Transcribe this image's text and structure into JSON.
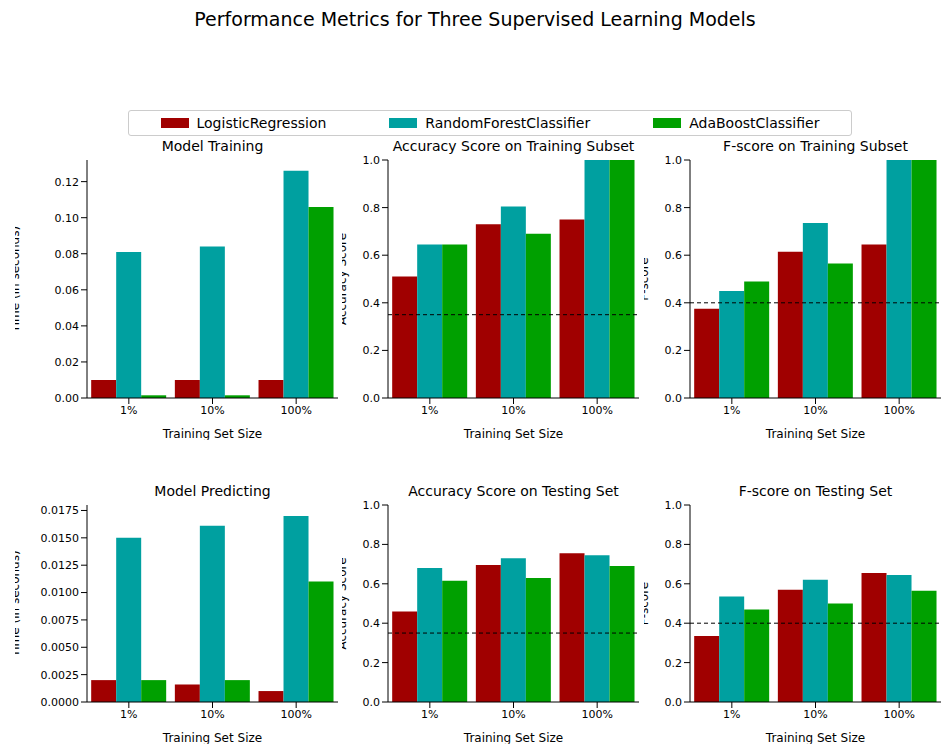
{
  "title": "Performance Metrics for Three Supervised Learning Models",
  "chart_data": [
    {
      "type": "bar",
      "title": "Model Training",
      "xlabel": "Training Set Size",
      "ylabel": "Time (in seconds)",
      "categories": [
        "1%",
        "10%",
        "100%"
      ],
      "series": [
        {
          "name": "LogisticRegression",
          "color": "#a00000",
          "values": [
            0.01,
            0.01,
            0.01
          ]
        },
        {
          "name": "RandomForestClassifier",
          "color": "#00a0a0",
          "values": [
            0.081,
            0.084,
            0.126
          ]
        },
        {
          "name": "AdaBoostClassifier",
          "color": "#00a000",
          "values": [
            0.0015,
            0.0015,
            0.106
          ]
        }
      ],
      "ylim": [
        0,
        0.132
      ],
      "yticks": [
        {
          "value": 0,
          "label": "0.00"
        },
        {
          "value": 0.02,
          "label": "0.02"
        },
        {
          "value": 0.04,
          "label": "0.04"
        },
        {
          "value": 0.06,
          "label": "0.06"
        },
        {
          "value": 0.08,
          "label": "0.08"
        },
        {
          "value": 0.1,
          "label": "0.10"
        },
        {
          "value": 0.12,
          "label": "0.12"
        }
      ]
    },
    {
      "type": "bar",
      "title": "Accuracy Score on Training Subset",
      "xlabel": "Training Set Size",
      "ylabel": "Accuracy Score",
      "categories": [
        "1%",
        "10%",
        "100%"
      ],
      "series": [
        {
          "name": "LogisticRegression",
          "color": "#a00000",
          "values": [
            0.51,
            0.73,
            0.75
          ]
        },
        {
          "name": "RandomForestClassifier",
          "color": "#00a0a0",
          "values": [
            0.645,
            0.805,
            1.0
          ]
        },
        {
          "name": "AdaBoostClassifier",
          "color": "#00a000",
          "values": [
            0.645,
            0.69,
            1.0
          ]
        }
      ],
      "ylim": [
        0,
        1
      ],
      "yticks": [
        {
          "value": 0,
          "label": "0.0"
        },
        0.2,
        0.4,
        0.6,
        0.8,
        {
          "value": 1,
          "label": "1.0"
        }
      ],
      "hline": 0.35
    },
    {
      "type": "bar",
      "title": "F-score on Training Subset",
      "xlabel": "Training Set Size",
      "ylabel": "F-score",
      "categories": [
        "1%",
        "10%",
        "100%"
      ],
      "series": [
        {
          "name": "LogisticRegression",
          "color": "#a00000",
          "values": [
            0.375,
            0.615,
            0.645
          ]
        },
        {
          "name": "RandomForestClassifier",
          "color": "#00a0a0",
          "values": [
            0.45,
            0.735,
            1.0
          ]
        },
        {
          "name": "AdaBoostClassifier",
          "color": "#00a000",
          "values": [
            0.49,
            0.565,
            1.0
          ]
        }
      ],
      "ylim": [
        0,
        1
      ],
      "yticks": [
        {
          "value": 0,
          "label": "0.0"
        },
        0.2,
        0.4,
        0.6,
        0.8,
        {
          "value": 1,
          "label": "1.0"
        }
      ],
      "hline": 0.4
    },
    {
      "type": "bar",
      "title": "Model Predicting",
      "xlabel": "Training Set Size",
      "ylabel": "Time (in seconds)",
      "categories": [
        "1%",
        "10%",
        "100%"
      ],
      "series": [
        {
          "name": "LogisticRegression",
          "color": "#a00000",
          "values": [
            0.002,
            0.0016,
            0.001
          ]
        },
        {
          "name": "RandomForestClassifier",
          "color": "#00a0a0",
          "values": [
            0.015,
            0.0161,
            0.017
          ]
        },
        {
          "name": "AdaBoostClassifier",
          "color": "#00a000",
          "values": [
            0.002,
            0.002,
            0.011
          ]
        }
      ],
      "ylim": [
        0,
        0.018
      ],
      "yticks": [
        {
          "value": 0,
          "label": "0.0000"
        },
        0.0025,
        {
          "value": 0.005,
          "label": "0.0050"
        },
        0.0075,
        {
          "value": 0.01,
          "label": "0.0100"
        },
        0.0125,
        {
          "value": 0.015,
          "label": "0.0150"
        },
        0.0175
      ]
    },
    {
      "type": "bar",
      "title": "Accuracy Score on Testing Set",
      "xlabel": "Training Set Size",
      "ylabel": "Accuracy Score",
      "categories": [
        "1%",
        "10%",
        "100%"
      ],
      "series": [
        {
          "name": "LogisticRegression",
          "color": "#a00000",
          "values": [
            0.46,
            0.695,
            0.755
          ]
        },
        {
          "name": "RandomForestClassifier",
          "color": "#00a0a0",
          "values": [
            0.68,
            0.73,
            0.745
          ]
        },
        {
          "name": "AdaBoostClassifier",
          "color": "#00a000",
          "values": [
            0.615,
            0.63,
            0.69
          ]
        }
      ],
      "ylim": [
        0,
        1
      ],
      "yticks": [
        {
          "value": 0,
          "label": "0.0"
        },
        0.2,
        0.4,
        0.6,
        0.8,
        {
          "value": 1,
          "label": "1.0"
        }
      ],
      "hline": 0.35
    },
    {
      "type": "bar",
      "title": "F-score on Testing Set",
      "xlabel": "Training Set Size",
      "ylabel": "F-score",
      "categories": [
        "1%",
        "10%",
        "100%"
      ],
      "series": [
        {
          "name": "LogisticRegression",
          "color": "#a00000",
          "values": [
            0.335,
            0.57,
            0.655
          ]
        },
        {
          "name": "RandomForestClassifier",
          "color": "#00a0a0",
          "values": [
            0.535,
            0.62,
            0.645
          ]
        },
        {
          "name": "AdaBoostClassifier",
          "color": "#00a000",
          "values": [
            0.47,
            0.5,
            0.565
          ]
        }
      ],
      "ylim": [
        0,
        1
      ],
      "yticks": [
        {
          "value": 0,
          "label": "0.0"
        },
        0.2,
        0.4,
        0.6,
        0.8,
        {
          "value": 1,
          "label": "1.0"
        }
      ],
      "hline": 0.4
    }
  ]
}
